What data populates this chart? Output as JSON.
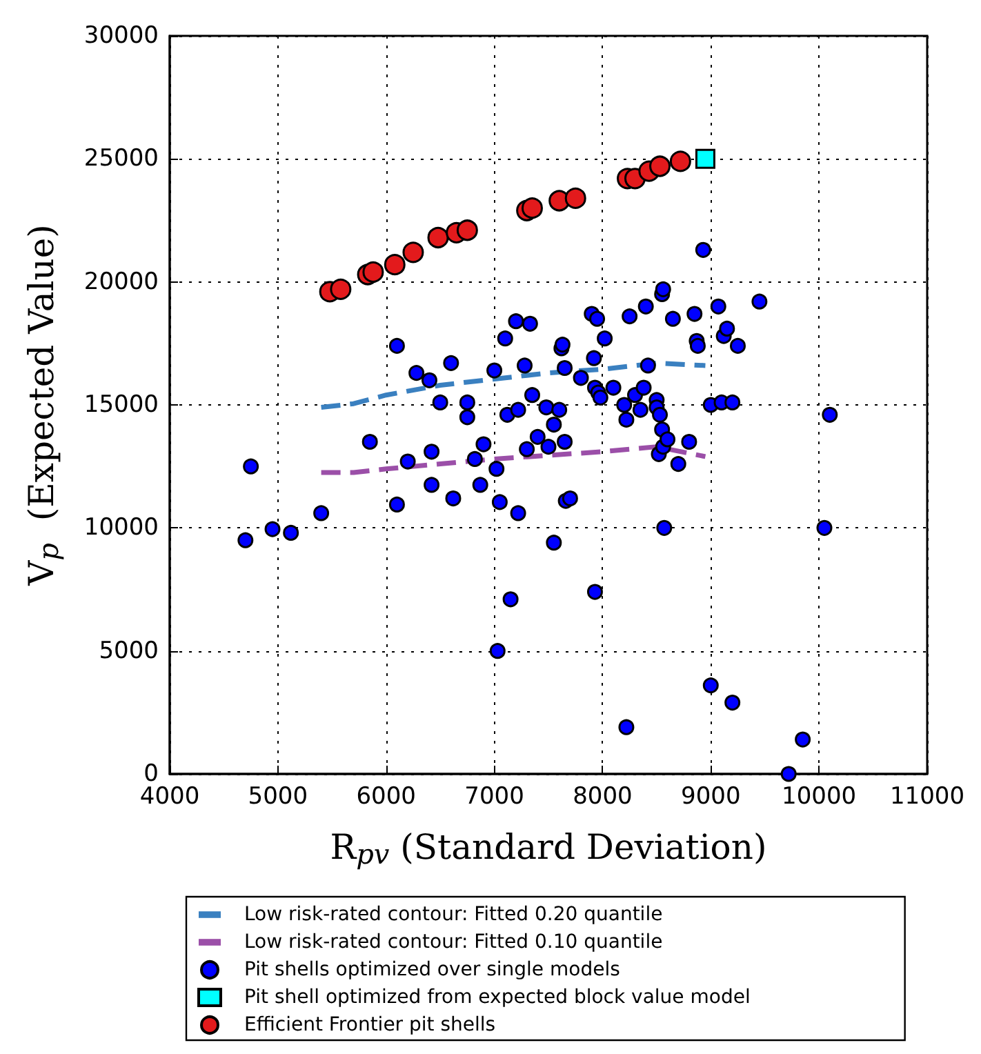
{
  "chart_data": {
    "type": "scatter",
    "xlabel": "R$_{pv}$ (Standard Deviation)",
    "ylabel": "V$_{p}$  (Expected Value)",
    "xlim": [
      4000,
      11000
    ],
    "xticks": [
      4000,
      5000,
      6000,
      7000,
      8000,
      9000,
      10000,
      11000
    ],
    "ylim": [
      0,
      30000
    ],
    "yticks": [
      0,
      5000,
      10000,
      15000,
      20000,
      25000,
      30000
    ],
    "grid": true,
    "legend": "bottom",
    "series": [
      {
        "name": "Low risk-rated contour: Fitted 0.20 quantile",
        "type": "line",
        "line_style": "dashed",
        "marker": "none",
        "color": "#3a80c0",
        "x": [
          5400,
          5700,
          6000,
          6500,
          7000,
          7500,
          8000,
          8500,
          8950
        ],
        "values": [
          14900,
          15050,
          15400,
          15800,
          16050,
          16300,
          16450,
          16700,
          16600
        ]
      },
      {
        "name": "Low risk-rated contour: Fitted 0.10 quantile",
        "type": "line",
        "line_style": "dashed",
        "marker": "none",
        "color": "#9b4fa8",
        "x": [
          5400,
          5700,
          6000,
          6500,
          7000,
          7500,
          8000,
          8500,
          8950
        ],
        "values": [
          12250,
          12250,
          12400,
          12600,
          12800,
          12950,
          13100,
          13300,
          12900
        ]
      },
      {
        "name": "Pit shells optimized over single models",
        "type": "scatter",
        "marker": "circle",
        "color": "#0000ff",
        "x": [
          4700,
          4750,
          4950,
          5120,
          5400,
          5850,
          6100,
          6100,
          6200,
          6280,
          6400,
          6420,
          6420,
          6500,
          6600,
          6620,
          6750,
          6750,
          6820,
          6870,
          6900,
          7000,
          7020,
          7050,
          7100,
          7120,
          7150,
          7200,
          7220,
          7220,
          7280,
          7300,
          7330,
          7350,
          7400,
          7480,
          7500,
          7550,
          7550,
          7600,
          7620,
          7630,
          7650,
          7650,
          7660,
          7700,
          7030,
          7800,
          7900,
          7920,
          7930,
          7950,
          7960,
          7980,
          8020,
          8100,
          8200,
          8220,
          8250,
          8300,
          8350,
          8380,
          8400,
          8420,
          8500,
          8500,
          8520,
          8530,
          8550,
          8550,
          8560,
          8560,
          8570,
          8600,
          8650,
          8700,
          8800,
          8850,
          8870,
          8880,
          8930,
          9000,
          9070,
          9100,
          9120,
          9150,
          9200,
          9250,
          9450,
          9000,
          9200,
          8220,
          7930,
          9850,
          9720,
          10050,
          10100
        ],
        "values": [
          9500,
          12500,
          9950,
          9800,
          10600,
          13500,
          17400,
          10950,
          12700,
          16300,
          16000,
          13100,
          11750,
          15100,
          16700,
          11200,
          15100,
          14500,
          12800,
          11750,
          13400,
          16400,
          12400,
          11050,
          17700,
          14600,
          7100,
          18400,
          14800,
          10600,
          16600,
          13200,
          18300,
          15400,
          13700,
          14900,
          13300,
          9400,
          14200,
          14800,
          17300,
          17450,
          16500,
          13500,
          11100,
          11200,
          5000,
          16100,
          18700,
          16900,
          15700,
          18500,
          15500,
          15300,
          17700,
          15700,
          15000,
          14400,
          18600,
          15400,
          14800,
          15700,
          19000,
          16600,
          15200,
          14900,
          13000,
          14600,
          14000,
          19500,
          19700,
          13300,
          10000,
          13600,
          18500,
          12600,
          13500,
          18700,
          17600,
          17400,
          21300,
          15000,
          19000,
          15100,
          17800,
          18100,
          15100,
          17400,
          19200,
          3600,
          2900,
          1900,
          7400,
          1400,
          0,
          10000,
          14600
        ]
      },
      {
        "name": "Pit shell optimized from expected block value model",
        "type": "scatter",
        "marker": "square",
        "color": "#00ffff",
        "x": [
          8950
        ],
        "values": [
          25000
        ]
      },
      {
        "name": "Efficient Frontier pit shells",
        "type": "scatter",
        "marker": "circle",
        "color": "#e31a1c",
        "x": [
          5480,
          5580,
          5830,
          5880,
          6080,
          6250,
          6480,
          6650,
          6750,
          7300,
          7350,
          7600,
          7750,
          8230,
          8300,
          8430,
          8530,
          8720
        ],
        "values": [
          19600,
          19700,
          20300,
          20400,
          20700,
          21200,
          21800,
          22000,
          22100,
          22900,
          23000,
          23300,
          23400,
          24200,
          24200,
          24500,
          24700,
          24900
        ]
      }
    ]
  }
}
